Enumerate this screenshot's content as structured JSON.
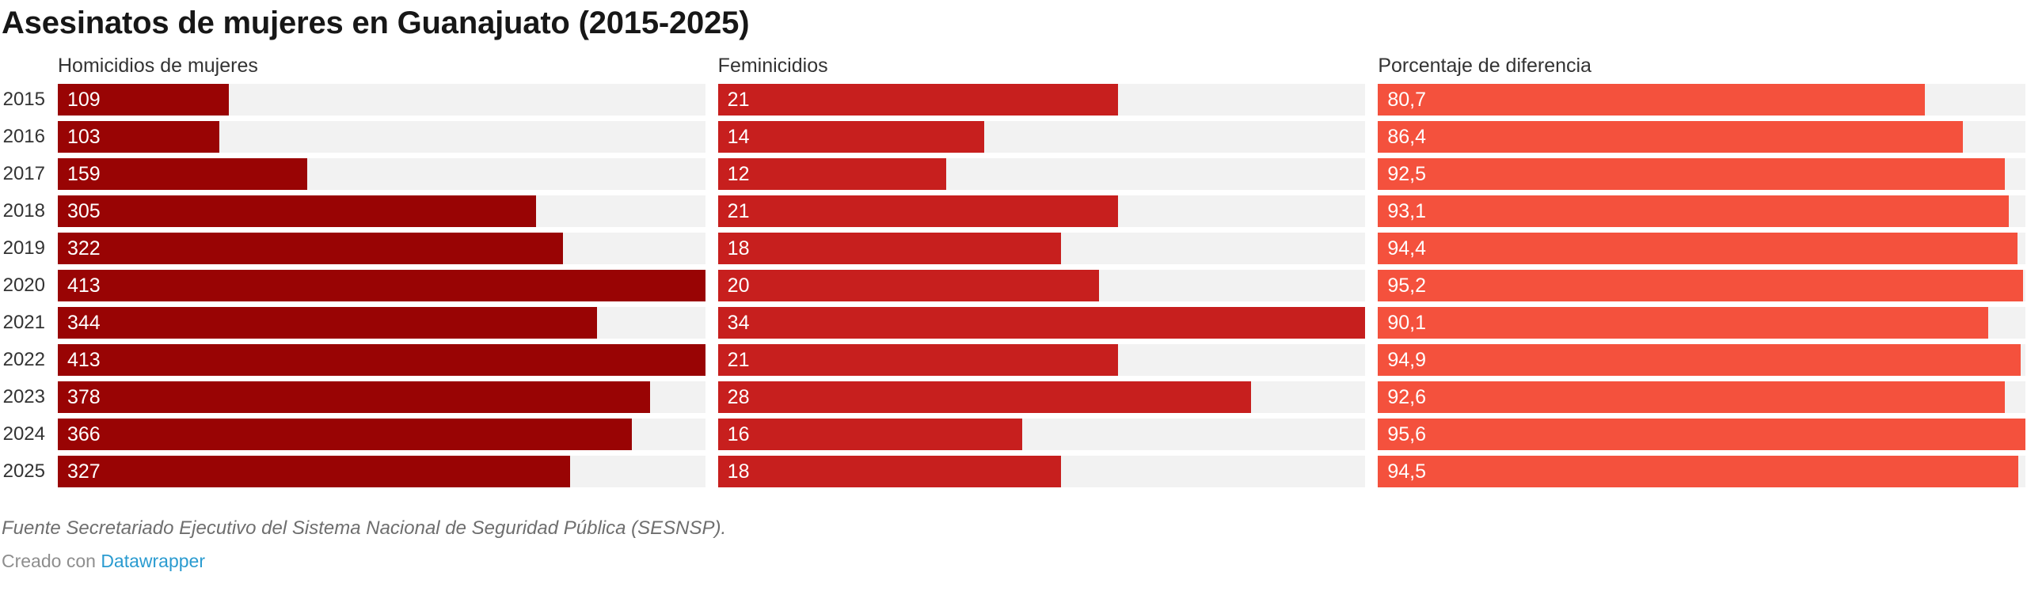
{
  "title": "Asesinatos de mujeres en Guanajuato (2015-2025)",
  "colors": {
    "homicidios_bar": "#990404",
    "feminicidios_bar": "#c71f1e",
    "porcentaje_bar": "#f4513d",
    "bar_track": "#f2f2f2",
    "title_text": "#171717",
    "header_text": "#333333",
    "source_text": "#6e6e6e",
    "link_blue": "#2a9bd0"
  },
  "footer": {
    "source": "Fuente Secretariado Ejecutivo del Sistema Nacional de Seguridad Pública (SESNSP).",
    "credit_prefix": "Creado con",
    "credit_link": "Datawrapper"
  },
  "chart_data": {
    "type": "bar",
    "orientation": "horizontal",
    "grid": false,
    "legend_position": "column-headers",
    "value_labels_inside_bars": true,
    "categories": [
      "2015",
      "2016",
      "2017",
      "2018",
      "2019",
      "2020",
      "2021",
      "2022",
      "2023",
      "2024",
      "2025"
    ],
    "series": [
      {
        "name": "Homicidios de mujeres",
        "values": [
          109,
          103,
          159,
          305,
          322,
          413,
          344,
          413,
          378,
          366,
          327
        ],
        "labels": [
          "109",
          "103",
          "159",
          "305",
          "322",
          "413",
          "344",
          "413",
          "378",
          "366",
          "327"
        ],
        "axis_min": 0,
        "axis_max": 413,
        "color": "#990404"
      },
      {
        "name": "Feminicidios",
        "values": [
          21,
          14,
          12,
          21,
          18,
          20,
          34,
          21,
          28,
          16,
          18
        ],
        "labels": [
          "21",
          "14",
          "12",
          "21",
          "18",
          "20",
          "34",
          "21",
          "28",
          "16",
          "18"
        ],
        "axis_min": 0,
        "axis_max": 34,
        "color": "#c71f1e"
      },
      {
        "name": "Porcentaje de diferencia",
        "values": [
          80.7,
          86.4,
          92.5,
          93.1,
          94.4,
          95.2,
          90.1,
          94.9,
          92.6,
          95.6,
          94.5
        ],
        "labels": [
          "80,7",
          "86,4",
          "92,5",
          "93,1",
          "94,4",
          "95,2",
          "90,1",
          "94,9",
          "92,6",
          "95,6",
          "94,5"
        ],
        "axis_min": 0,
        "axis_max": 95.6,
        "color": "#f4513d"
      }
    ],
    "track_color": "#f2f2f2"
  }
}
